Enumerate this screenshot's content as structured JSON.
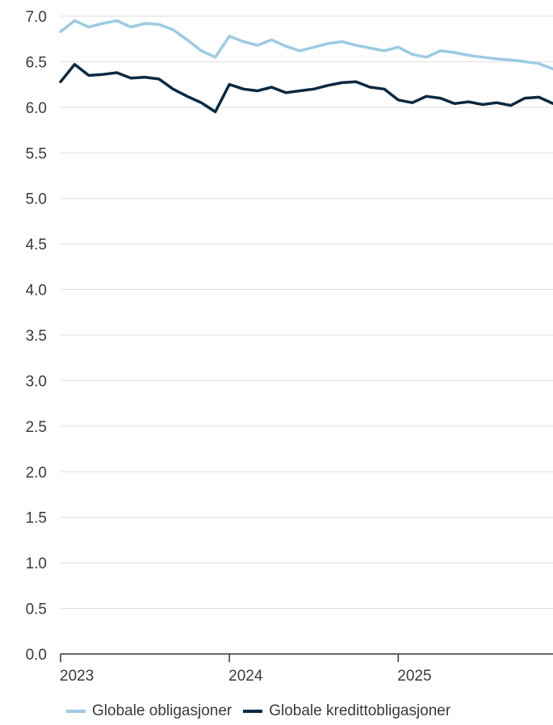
{
  "chart_data": {
    "type": "line",
    "title": "",
    "xlabel": "",
    "ylabel": "",
    "ylim": [
      0,
      7
    ],
    "y_ticks": [
      "0.0",
      "0.5",
      "1.0",
      "1.5",
      "2.0",
      "2.5",
      "3.0",
      "3.5",
      "4.0",
      "4.5",
      "5.0",
      "5.5",
      "6.0",
      "6.5",
      "7.0"
    ],
    "x_ticks": [
      "2023",
      "2024",
      "2025"
    ],
    "xlim": [
      "2023-01",
      "2025-12"
    ],
    "grid": "horizontal",
    "legend_position": "bottom",
    "x": [
      "2023-01",
      "2023-02",
      "2023-03",
      "2023-04",
      "2023-05",
      "2023-06",
      "2023-07",
      "2023-08",
      "2023-09",
      "2023-10",
      "2023-11",
      "2023-12",
      "2024-01",
      "2024-02",
      "2024-03",
      "2024-04",
      "2024-05",
      "2024-06",
      "2024-07",
      "2024-08",
      "2024-09",
      "2024-10",
      "2024-11",
      "2024-12",
      "2025-01",
      "2025-02",
      "2025-03",
      "2025-04",
      "2025-05",
      "2025-06",
      "2025-07",
      "2025-08",
      "2025-09",
      "2025-10",
      "2025-11",
      "2025-12"
    ],
    "series": [
      {
        "name": "Globale obligasjoner",
        "color": "#9ccbe2",
        "values": [
          6.83,
          6.95,
          6.88,
          6.92,
          6.95,
          6.88,
          6.92,
          6.91,
          6.85,
          6.74,
          6.62,
          6.55,
          6.78,
          6.72,
          6.68,
          6.74,
          6.67,
          6.62,
          6.66,
          6.7,
          6.72,
          6.68,
          6.65,
          6.62,
          6.66,
          6.58,
          6.55,
          6.62,
          6.6,
          6.57,
          6.55,
          6.53,
          6.52,
          6.5,
          6.48,
          6.42
        ]
      },
      {
        "name": "Globale kredittobligasjoner",
        "color": "#0a2a42",
        "values": [
          6.28,
          6.47,
          6.35,
          6.36,
          6.38,
          6.32,
          6.33,
          6.31,
          6.2,
          6.12,
          6.05,
          5.95,
          6.25,
          6.2,
          6.18,
          6.22,
          6.16,
          6.18,
          6.2,
          6.24,
          6.27,
          6.28,
          6.22,
          6.2,
          6.08,
          6.05,
          6.12,
          6.1,
          6.04,
          6.06,
          6.03,
          6.05,
          6.02,
          6.1,
          6.11,
          6.04
        ]
      }
    ]
  }
}
